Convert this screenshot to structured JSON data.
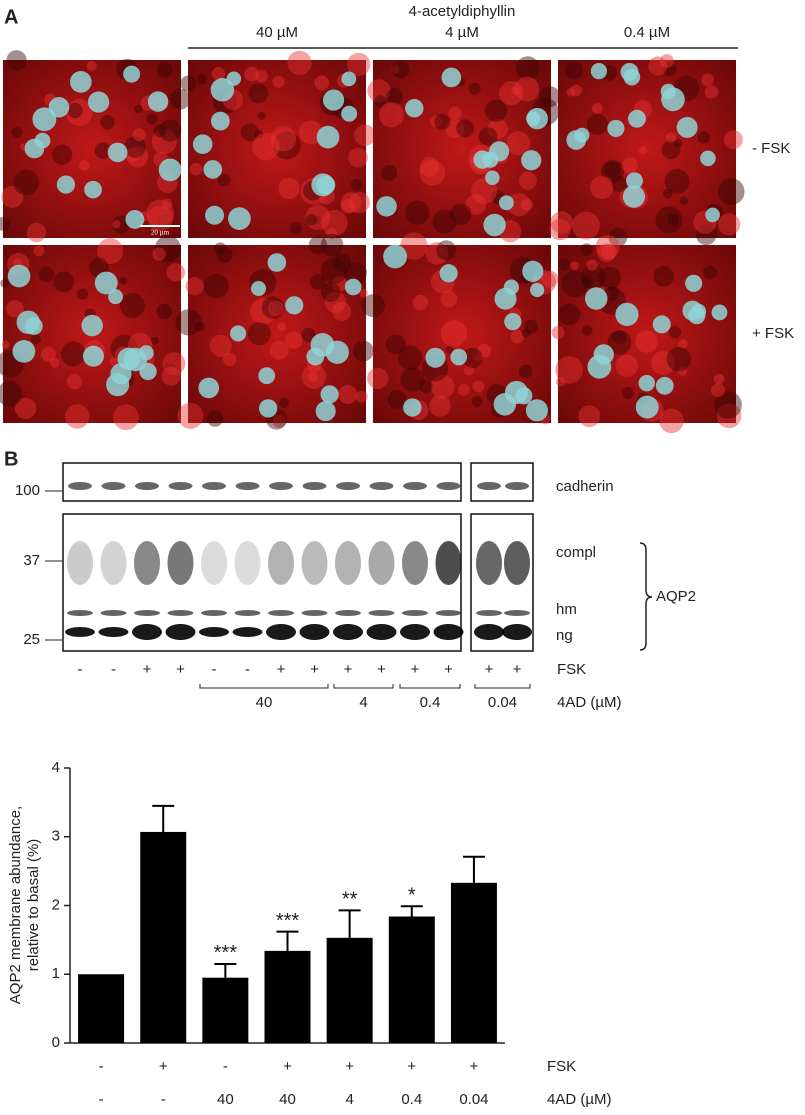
{
  "panel_a": {
    "label": "A",
    "compound": "4-acetyldiphyllin",
    "concentrations": [
      "40 µM",
      "4 µM",
      "0.4 µM"
    ],
    "rows": [
      "- FSK",
      "+ FSK"
    ],
    "scale_bar": "20 µm"
  },
  "panel_b": {
    "label": "B",
    "markers": [
      100,
      37,
      25
    ],
    "bands": [
      "cadherin",
      "compl",
      "hm",
      "ng"
    ],
    "group": "AQP2",
    "fsk_signs": [
      "-",
      "-",
      "+",
      "+",
      "-",
      "-",
      "+",
      "+",
      "+",
      "+",
      "+",
      "+",
      "+",
      "+"
    ],
    "fsk_label": "FSK",
    "dose_groups": [
      "40",
      "4",
      "0.4",
      "0.04"
    ],
    "dose_label": "4AD (µM)"
  },
  "chart_data": {
    "type": "bar",
    "ylabel": [
      "AQP2 membrane abundance,",
      "relative to basal (%)"
    ],
    "categories": [
      "-",
      "+",
      "-",
      "+",
      "+",
      "+",
      "+"
    ],
    "doses": [
      "-",
      "-",
      "40",
      "40",
      "4",
      "0.4",
      "0.04"
    ],
    "row_labels": [
      "FSK",
      "4AD (µM)"
    ],
    "values": [
      1,
      3.07,
      0.95,
      1.34,
      1.53,
      1.84,
      2.33
    ],
    "errors": [
      null,
      0.38,
      0.2,
      0.28,
      0.4,
      0.15,
      0.38
    ],
    "annotations": [
      null,
      null,
      "***",
      "***",
      "**",
      "*",
      null
    ],
    "color": "#000000",
    "ylim": [
      0,
      4
    ],
    "yticks": [
      0,
      1,
      2,
      3,
      4
    ]
  }
}
